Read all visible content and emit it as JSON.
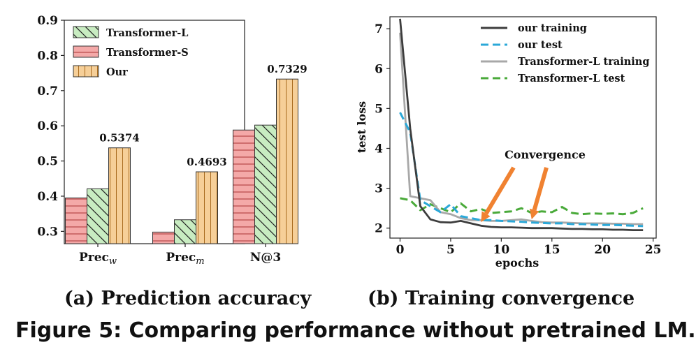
{
  "chart_data": [
    {
      "type": "bar",
      "categories": [
        "Prec_w",
        "Prec_m",
        "N@3"
      ],
      "category_main": [
        "Prec",
        "Prec",
        "N@3"
      ],
      "category_sub": [
        "w",
        "m",
        ""
      ],
      "series": [
        {
          "name": "Transformer-S",
          "values": [
            0.395,
            0.298,
            0.588
          ],
          "color": "#f4a9a8",
          "pattern": "horizontal"
        },
        {
          "name": "Transformer-L",
          "values": [
            0.421,
            0.333,
            0.602
          ],
          "color": "#c8ecc1",
          "pattern": "diagonal"
        },
        {
          "name": "Our",
          "values": [
            0.5374,
            0.4693,
            0.7329
          ],
          "color": "#f6cf98",
          "pattern": "vertical"
        }
      ],
      "legend_order": [
        "Transformer-L",
        "Transformer-S",
        "Our"
      ],
      "data_labels": [
        "0.5374",
        "0.4693",
        "0.7329"
      ],
      "ylim": [
        0.265,
        0.9
      ],
      "yticks": [
        "0.3",
        "0.4",
        "0.5",
        "0.6",
        "0.7",
        "0.8",
        "0.9"
      ],
      "legend_position": "top-left",
      "grid": false
    },
    {
      "type": "line",
      "x": [
        0,
        1,
        2,
        3,
        4,
        5,
        6,
        7,
        8,
        9,
        10,
        11,
        12,
        13,
        14,
        15,
        16,
        17,
        18,
        19,
        20,
        21,
        22,
        23,
        24
      ],
      "series": [
        {
          "name": "our training",
          "color": "#3d3d3d",
          "dash": "solid",
          "values": [
            7.25,
            4.5,
            2.55,
            2.22,
            2.15,
            2.14,
            2.18,
            2.12,
            2.06,
            2.03,
            2.02,
            2.02,
            2.01,
            2.0,
            2.0,
            2.0,
            1.99,
            1.98,
            1.98,
            1.97,
            1.97,
            1.96,
            1.96,
            1.95,
            1.95
          ]
        },
        {
          "name": "our test",
          "color": "#2ba8d8",
          "dash": "dashed",
          "values": [
            4.9,
            4.4,
            2.7,
            2.55,
            2.4,
            2.6,
            2.3,
            2.25,
            2.2,
            2.2,
            2.18,
            2.17,
            2.16,
            2.14,
            2.13,
            2.12,
            2.12,
            2.1,
            2.1,
            2.09,
            2.08,
            2.08,
            2.07,
            2.06,
            2.05
          ]
        },
        {
          "name": "Transformer-L training",
          "color": "#a8a8a8",
          "dash": "solid",
          "values": [
            6.9,
            2.8,
            2.75,
            2.7,
            2.4,
            2.35,
            2.25,
            2.2,
            2.2,
            2.18,
            2.18,
            2.2,
            2.22,
            2.18,
            2.15,
            2.14,
            2.14,
            2.13,
            2.12,
            2.12,
            2.12,
            2.11,
            2.11,
            2.1,
            2.1
          ]
        },
        {
          "name": "Transformer-L test",
          "color": "#4aaa3a",
          "dash": "dashed",
          "values": [
            2.75,
            2.7,
            2.45,
            2.6,
            2.5,
            2.4,
            2.62,
            2.42,
            2.48,
            2.38,
            2.4,
            2.42,
            2.5,
            2.38,
            2.42,
            2.4,
            2.53,
            2.38,
            2.35,
            2.37,
            2.36,
            2.37,
            2.35,
            2.38,
            2.5
          ]
        }
      ],
      "xlabel": "epochs",
      "ylabel": "test loss",
      "xlim": [
        -1,
        25.3
      ],
      "ylim": [
        1.75,
        7.3
      ],
      "xticks": [
        "0",
        "5",
        "10",
        "15",
        "20",
        "25"
      ],
      "yticks": [
        "2",
        "3",
        "4",
        "5",
        "6",
        "7"
      ],
      "annotation": {
        "text": "Convergence",
        "color": "#f08231",
        "targets": [
          {
            "x": 8,
            "y": 2.15
          },
          {
            "x": 13,
            "y": 2.22
          }
        ]
      },
      "legend_position": "top-right",
      "grid": false
    }
  ],
  "subcaptions": {
    "a": "(a) Prediction accuracy",
    "b": "(b) Training convergence"
  },
  "caption": "Figure 5: Comparing performance without pretrained LM."
}
